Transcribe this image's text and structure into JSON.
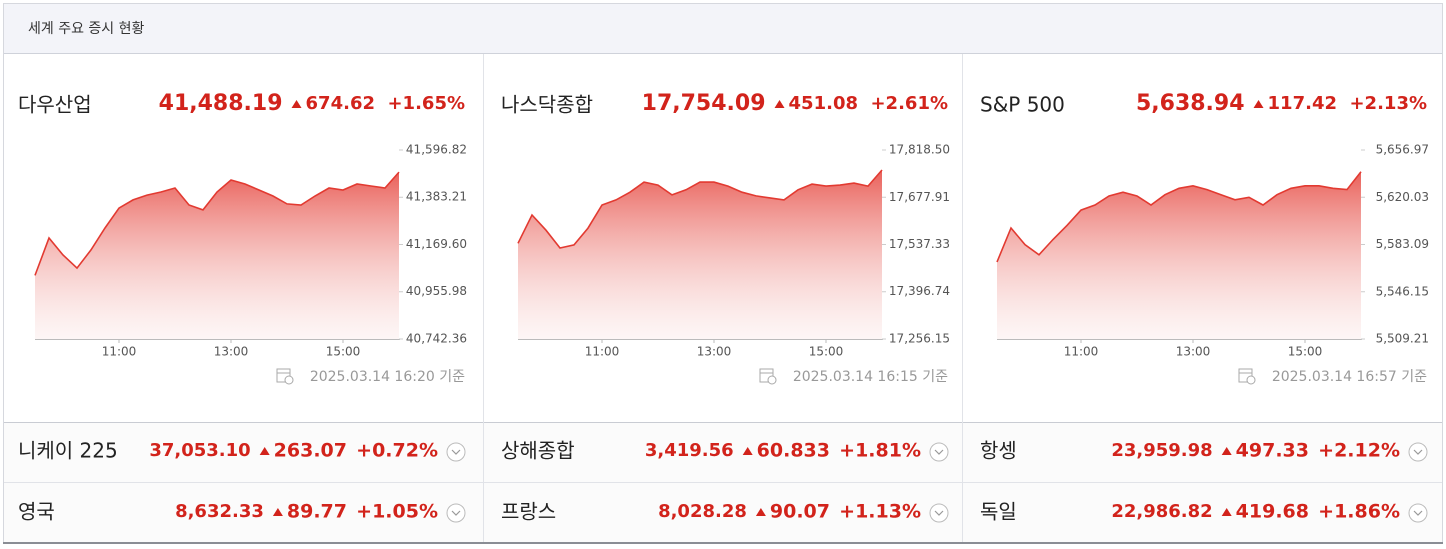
{
  "header": {
    "title": "세계 주요 증시 현황"
  },
  "main": [
    {
      "name": "다우산업",
      "value": "41,488.19",
      "change": "674.62",
      "change_pct": "+1.65%",
      "timestamp": "2025.03.14 16:20 기준"
    },
    {
      "name": "나스닥종합",
      "value": "17,754.09",
      "change": "451.08",
      "change_pct": "+2.61%",
      "timestamp": "2025.03.14 16:15 기준"
    },
    {
      "name": "S&P 500",
      "value": "5,638.94",
      "change": "117.42",
      "change_pct": "+2.13%",
      "timestamp": "2025.03.14 16:57 기준"
    }
  ],
  "chart_data": [
    {
      "type": "line",
      "color": "#e23a31",
      "grid": false,
      "x": [
        9.5,
        9.75,
        10,
        10.25,
        10.5,
        10.75,
        11,
        11.25,
        11.5,
        11.75,
        12,
        12.25,
        12.5,
        12.75,
        13,
        13.25,
        13.5,
        13.75,
        14,
        14.25,
        14.5,
        14.75,
        15,
        15.25,
        15.5,
        15.75,
        16
      ],
      "values": [
        41030,
        41199,
        41122,
        41063,
        41145,
        41244,
        41334,
        41371,
        41393,
        41407,
        41425,
        41348,
        41326,
        41407,
        41461,
        41443,
        41416,
        41389,
        41353,
        41348,
        41389,
        41425,
        41416,
        41443,
        41434,
        41425,
        41497
      ],
      "xlim": [
        9.5,
        16
      ],
      "xticks": [
        {
          "value": 11,
          "label": "11:00"
        },
        {
          "value": 13,
          "label": "13:00"
        },
        {
          "value": 15,
          "label": "15:00"
        }
      ],
      "ylim": [
        40742.36,
        41596.82
      ],
      "yticks": [
        {
          "value": 40742.36,
          "label": "40,742.36"
        },
        {
          "value": 40955.98,
          "label": "40,955.98"
        },
        {
          "value": 41169.6,
          "label": "41,169.60"
        },
        {
          "value": 41383.21,
          "label": "41,383.21"
        },
        {
          "value": 41596.82,
          "label": "41,596.82"
        }
      ]
    },
    {
      "type": "line",
      "color": "#e23a31",
      "grid": false,
      "x": [
        9.5,
        9.75,
        10,
        10.25,
        10.5,
        10.75,
        11,
        11.25,
        11.5,
        11.75,
        12,
        12.25,
        12.5,
        12.75,
        13,
        13.25,
        13.5,
        13.75,
        14,
        14.25,
        14.5,
        14.75,
        15,
        15.25,
        15.5,
        15.75,
        16
      ],
      "values": [
        17541,
        17625,
        17580,
        17527,
        17536,
        17586,
        17655,
        17670,
        17693,
        17723,
        17714,
        17685,
        17700,
        17723,
        17723,
        17711,
        17693,
        17682,
        17676,
        17670,
        17700,
        17717,
        17711,
        17714,
        17720,
        17711,
        17759
      ],
      "xlim": [
        9.5,
        16
      ],
      "xticks": [
        {
          "value": 11,
          "label": "11:00"
        },
        {
          "value": 13,
          "label": "13:00"
        },
        {
          "value": 15,
          "label": "15:00"
        }
      ],
      "ylim": [
        17256.15,
        17818.5
      ],
      "yticks": [
        {
          "value": 17256.15,
          "label": "17,256.15"
        },
        {
          "value": 17396.74,
          "label": "17,396.74"
        },
        {
          "value": 17537.33,
          "label": "17,537.33"
        },
        {
          "value": 17677.91,
          "label": "17,677.91"
        },
        {
          "value": 17818.5,
          "label": "17,818.50"
        }
      ]
    },
    {
      "type": "line",
      "color": "#e23a31",
      "grid": false,
      "x": [
        9.5,
        9.75,
        10,
        10.25,
        10.5,
        10.75,
        11,
        11.25,
        11.5,
        11.75,
        12,
        12.25,
        12.5,
        12.75,
        13,
        13.25,
        13.5,
        13.75,
        14,
        14.25,
        14.5,
        14.75,
        15,
        15.25,
        15.5,
        15.75,
        16
      ],
      "values": [
        5569.4,
        5596,
        5583,
        5575,
        5587,
        5598,
        5610,
        5614,
        5621,
        5624,
        5621,
        5614,
        5622,
        5627,
        5629,
        5626,
        5622,
        5618,
        5620,
        5614,
        5622,
        5627,
        5629,
        5629,
        5627,
        5626,
        5640
      ],
      "xlim": [
        9.5,
        16
      ],
      "xticks": [
        {
          "value": 11,
          "label": "11:00"
        },
        {
          "value": 13,
          "label": "13:00"
        },
        {
          "value": 15,
          "label": "15:00"
        }
      ],
      "ylim": [
        5509.21,
        5656.97
      ],
      "yticks": [
        {
          "value": 5509.21,
          "label": "5,509.21"
        },
        {
          "value": 5546.15,
          "label": "5,546.15"
        },
        {
          "value": 5583.09,
          "label": "5,583.09"
        },
        {
          "value": 5620.03,
          "label": "5,620.03"
        },
        {
          "value": 5656.97,
          "label": "5,656.97"
        }
      ]
    }
  ],
  "rows": [
    [
      {
        "name": "니케이 225",
        "value": "37,053.10",
        "change": "263.07",
        "change_pct": "+0.72%"
      },
      {
        "name": "상해종합",
        "value": "3,419.56",
        "change": "60.833",
        "change_pct": "+1.81%"
      },
      {
        "name": "항셍",
        "value": "23,959.98",
        "change": "497.33",
        "change_pct": "+2.12%"
      }
    ],
    [
      {
        "name": "영국",
        "value": "8,632.33",
        "change": "89.77",
        "change_pct": "+1.05%"
      },
      {
        "name": "프랑스",
        "value": "8,028.28",
        "change": "90.07",
        "change_pct": "+1.13%"
      },
      {
        "name": "독일",
        "value": "22,986.82",
        "change": "419.68",
        "change_pct": "+1.86%"
      }
    ]
  ]
}
